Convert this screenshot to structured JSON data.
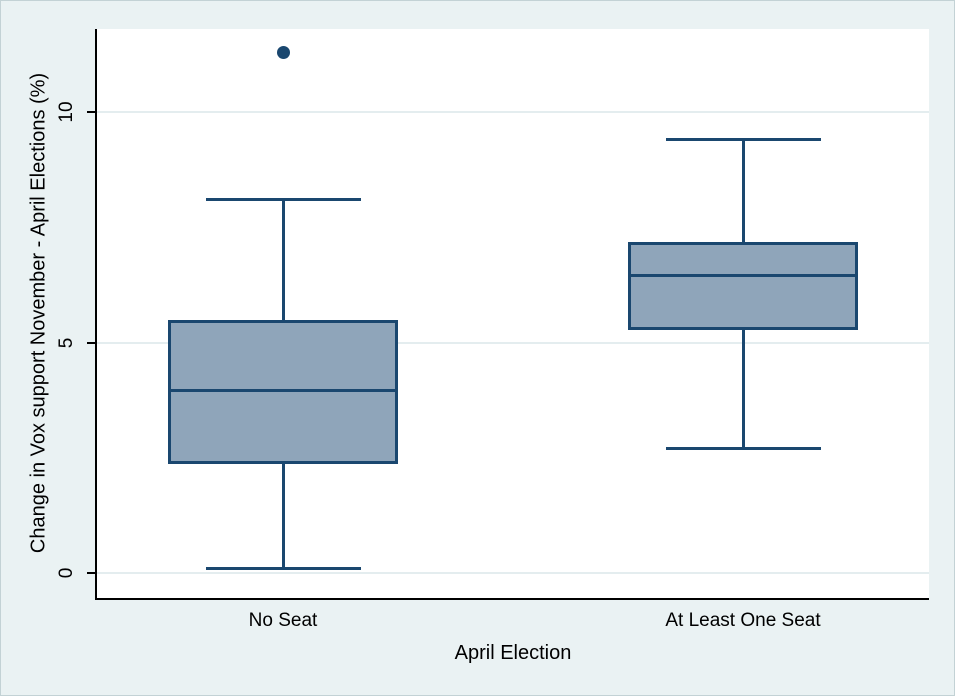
{
  "chart_data": {
    "type": "box",
    "title": "",
    "xlabel": "April Election",
    "ylabel": "Change in Vox support November - April Elections (%)",
    "categories": [
      "No Seat",
      "At Least One Seat"
    ],
    "yticks": [
      0,
      5,
      10
    ],
    "ylim": [
      -0.55,
      11.81
    ],
    "grid": true,
    "legend": "none",
    "series": [
      {
        "category": "No Seat",
        "whisker_low": 0.1,
        "q1": 2.4,
        "median": 3.95,
        "q3": 5.45,
        "whisker_high": 8.1,
        "outliers": [
          11.3
        ]
      },
      {
        "category": "At Least One Seat",
        "whisker_low": 2.7,
        "q1": 5.3,
        "median": 6.45,
        "q3": 7.15,
        "whisker_high": 9.4,
        "outliers": []
      }
    ],
    "colors": {
      "background": "#eaf2f3",
      "plot_background": "#ffffff",
      "gridline": "#e4edef",
      "box_fill": "#8fa5ba",
      "box_line": "#1a476f",
      "axis": "#000000"
    }
  }
}
